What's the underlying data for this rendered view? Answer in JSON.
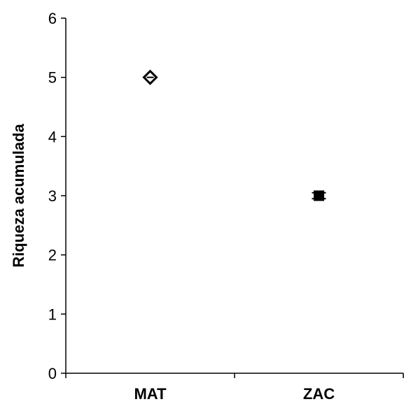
{
  "chart_data": {
    "type": "scatter",
    "title": "",
    "xlabel": "",
    "ylabel": "Riqueza acumulada",
    "categories": [
      "MAT",
      "ZAC"
    ],
    "series": [
      {
        "values": [
          5,
          3
        ],
        "markers": [
          "diamond-open",
          "square-filled"
        ],
        "error_bars": [
          0,
          0.05
        ]
      }
    ],
    "yticks": [
      "0",
      "1",
      "2",
      "3",
      "4",
      "5",
      "6"
    ],
    "ylim": [
      0,
      6
    ],
    "grid": false,
    "legend": "none",
    "colors": {
      "axis": "#000000",
      "marker": "#000000"
    }
  }
}
